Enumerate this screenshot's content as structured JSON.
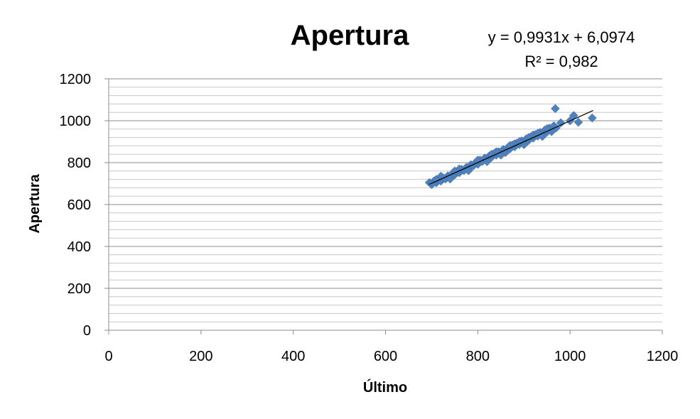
{
  "chart_data": {
    "type": "scatter",
    "title": "Apertura",
    "xlabel": "Último",
    "ylabel": "Apertura",
    "xlim": [
      0,
      1200
    ],
    "ylim": [
      0,
      1200
    ],
    "x_ticks": [
      "0",
      "200",
      "400",
      "600",
      "800",
      "1000",
      "1200"
    ],
    "y_ticks": [
      "0",
      "200",
      "400",
      "600",
      "800",
      "1000",
      "1200"
    ],
    "grid": {
      "major": true,
      "minor": true
    },
    "legend": "none",
    "trendline": {
      "slope": 0.9931,
      "intercept": 6.0974,
      "x_range": [
        695,
        1050
      ],
      "equation": "y = 0,9931x + 6,0974",
      "r_squared": "R² = 0,982"
    },
    "series": [
      {
        "marker": "diamond",
        "color": "#4F81BD",
        "points": [
          [
            695,
            705
          ],
          [
            700,
            700
          ],
          [
            705,
            712
          ],
          [
            710,
            704
          ],
          [
            715,
            718
          ],
          [
            720,
            712
          ],
          [
            725,
            727
          ],
          [
            730,
            722
          ],
          [
            735,
            737
          ],
          [
            740,
            733
          ],
          [
            745,
            748
          ],
          [
            750,
            742
          ],
          [
            755,
            757
          ],
          [
            760,
            752
          ],
          [
            765,
            768
          ],
          [
            770,
            762
          ],
          [
            775,
            777
          ],
          [
            780,
            773
          ],
          [
            785,
            790
          ],
          [
            790,
            784
          ],
          [
            795,
            800
          ],
          [
            800,
            792
          ],
          [
            805,
            812
          ],
          [
            810,
            806
          ],
          [
            815,
            822
          ],
          [
            820,
            814
          ],
          [
            825,
            832
          ],
          [
            830,
            826
          ],
          [
            835,
            843
          ],
          [
            840,
            836
          ],
          [
            845,
            852
          ],
          [
            850,
            846
          ],
          [
            855,
            863
          ],
          [
            860,
            857
          ],
          [
            865,
            872
          ],
          [
            870,
            866
          ],
          [
            875,
            884
          ],
          [
            880,
            876
          ],
          [
            885,
            893
          ],
          [
            890,
            887
          ],
          [
            895,
            904
          ],
          [
            900,
            898
          ],
          [
            905,
            913
          ],
          [
            910,
            906
          ],
          [
            915,
            924
          ],
          [
            920,
            917
          ],
          [
            925,
            934
          ],
          [
            930,
            927
          ],
          [
            935,
            944
          ],
          [
            940,
            937
          ],
          [
            945,
            955
          ],
          [
            950,
            946
          ],
          [
            955,
            965
          ],
          [
            960,
            958
          ],
          [
            965,
            976
          ],
          [
            970,
            966
          ],
          [
            720,
            735
          ],
          [
            740,
            722
          ],
          [
            760,
            770
          ],
          [
            780,
            762
          ],
          [
            800,
            812
          ],
          [
            820,
            805
          ],
          [
            840,
            852
          ],
          [
            860,
            848
          ],
          [
            880,
            890
          ],
          [
            900,
            886
          ],
          [
            920,
            932
          ],
          [
            940,
            925
          ],
          [
            700,
            695
          ],
          [
            710,
            720
          ],
          [
            750,
            760
          ],
          [
            830,
            840
          ],
          [
            850,
            836
          ],
          [
            870,
            882
          ],
          [
            890,
            900
          ],
          [
            910,
            920
          ],
          [
            930,
            940
          ],
          [
            950,
            962
          ],
          [
            960,
            948
          ],
          [
            968,
            1058
          ],
          [
            980,
            990
          ],
          [
            1000,
            1000
          ],
          [
            1008,
            1025
          ],
          [
            1018,
            993
          ],
          [
            1048,
            1013
          ]
        ]
      }
    ]
  }
}
